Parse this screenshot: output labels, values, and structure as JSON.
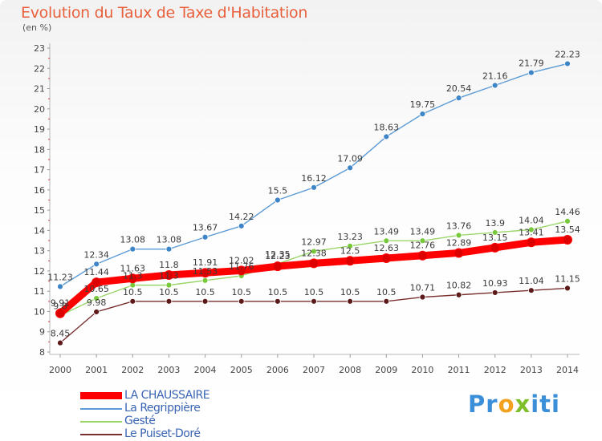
{
  "chart_data": {
    "type": "line",
    "title": "Evolution du Taux de Taxe d'Habitation",
    "ylabel": "(en %)",
    "x": [
      "2000",
      "2001",
      "2002",
      "2003",
      "2004",
      "2005",
      "2006",
      "2007",
      "2008",
      "2009",
      "2010",
      "2011",
      "2012",
      "2013",
      "2014"
    ],
    "ylim": [
      8,
      23
    ],
    "yticks": [
      "8",
      "9",
      "10",
      "11",
      "12",
      "13",
      "14",
      "15",
      "16",
      "17",
      "18",
      "19",
      "20",
      "21",
      "22",
      "23"
    ],
    "grid": false,
    "legend_position": "bottom-left",
    "series": [
      {
        "name": "LA CHAUSSAIRE",
        "color": "#ff0000",
        "marker_color": "#dd0000",
        "values": [
          9.91,
          11.44,
          11.63,
          11.8,
          11.91,
          12.02,
          12.23,
          12.38,
          12.5,
          12.63,
          12.76,
          12.89,
          13.15,
          13.41,
          13.54
        ]
      },
      {
        "name": "La Regrippière",
        "color": "#5b9bd5",
        "marker_color": "#3d85c6",
        "values": [
          11.23,
          12.34,
          13.08,
          13.08,
          13.67,
          14.22,
          15.5,
          16.12,
          17.09,
          18.63,
          19.75,
          20.54,
          21.16,
          21.79,
          22.23
        ]
      },
      {
        "name": "Gesté",
        "color": "#9bd66a",
        "marker_color": "#78c83c",
        "values": [
          9.8,
          10.65,
          11.3,
          11.3,
          11.53,
          11.76,
          12.35,
          12.97,
          13.23,
          13.49,
          13.49,
          13.76,
          13.9,
          14.04,
          14.46
        ]
      },
      {
        "name": "Le Puiset-Doré",
        "color": "#7a2f2f",
        "marker_color": "#5c1a1a",
        "values": [
          8.45,
          9.98,
          10.5,
          10.5,
          10.5,
          10.5,
          10.5,
          10.5,
          10.5,
          10.5,
          10.71,
          10.82,
          10.93,
          11.04,
          11.15
        ]
      }
    ],
    "data_labels": {
      "LA CHAUSSAIRE": [
        "9.91",
        "11.44",
        "11.63",
        "11.8",
        "11.91",
        "12.02",
        "12.23",
        "12.38",
        "12.5",
        "12.63",
        "12.76",
        "12.89",
        "13.15",
        "13.41",
        "13.54"
      ],
      "La Regrippière": [
        "11.23",
        "12.34",
        "13.08",
        "13.08",
        "13.67",
        "14.22",
        "15.5",
        "16.12",
        "17.09",
        "18.63",
        "19.75",
        "20.54",
        "21.16",
        "21.79",
        "22.23"
      ],
      "Gesté": [
        "9.8",
        "10.65",
        "11.3",
        "11.3",
        "11.53",
        "11.76",
        "12.35",
        "12.97",
        "13.23",
        "13.49",
        "13.49",
        "13.76",
        "13.9",
        "14.04",
        "14.46"
      ],
      "Le Puiset-Doré": [
        "8.45",
        "9.98",
        "10.5",
        "10.5",
        "10.5",
        "10.5",
        "10.5",
        "10.5",
        "10.5",
        "10.5",
        "10.71",
        "10.82",
        "10.93",
        "11.04",
        "11.15"
      ]
    }
  },
  "header": {
    "title": "Evolution du Taux de Taxe d'Habitation",
    "unit": "(en %)"
  },
  "legend": {
    "items": [
      "LA CHAUSSAIRE",
      "La Regrippière",
      "Gesté",
      "Le Puiset-Doré"
    ]
  },
  "brand": {
    "p1": "Pr",
    "p2": "o",
    "p3": "x",
    "p4": "iti"
  }
}
